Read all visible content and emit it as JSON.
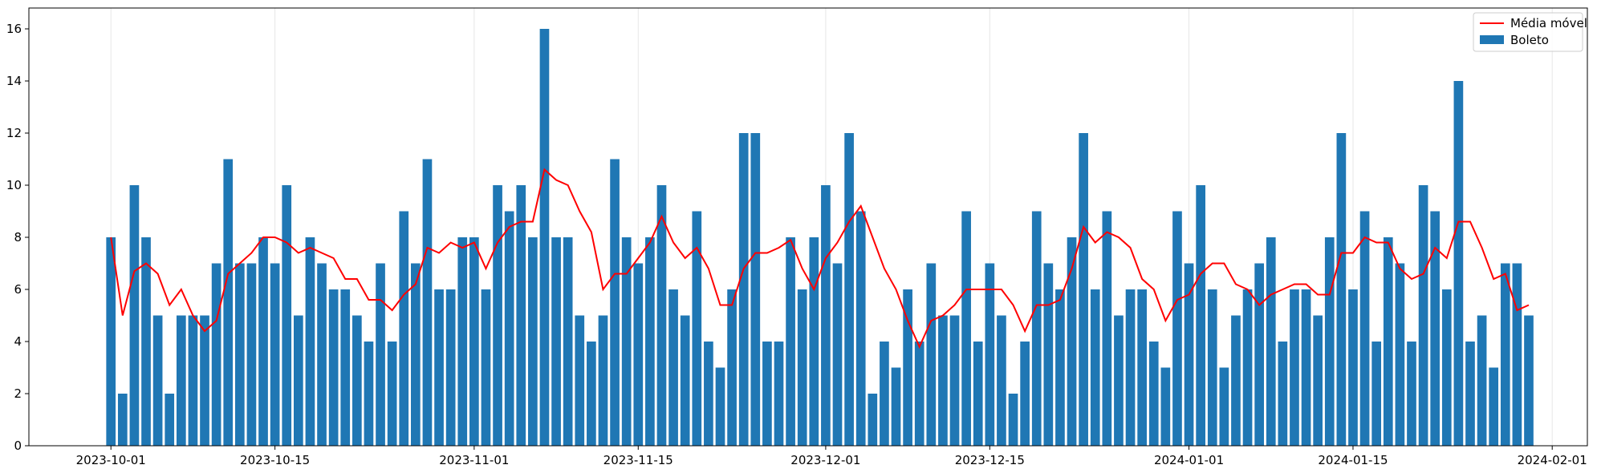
{
  "chart_data": {
    "type": "bar",
    "title": "",
    "xlabel": "",
    "ylabel": "",
    "x_start_date": "2023-10-01",
    "xlim": [
      "2023-09-24",
      "2024-02-04"
    ],
    "ylim": [
      0,
      16.8
    ],
    "grid": "vertical",
    "legend_position": "top-right",
    "x_ticks": [
      {
        "date": "2023-10-01",
        "label": "2023-10-01"
      },
      {
        "date": "2023-10-15",
        "label": "2023-10-15"
      },
      {
        "date": "2023-11-01",
        "label": "2023-11-01"
      },
      {
        "date": "2023-11-15",
        "label": "2023-11-15"
      },
      {
        "date": "2023-12-01",
        "label": "2023-12-01"
      },
      {
        "date": "2023-12-15",
        "label": "2023-12-15"
      },
      {
        "date": "2024-01-01",
        "label": "2024-01-01"
      },
      {
        "date": "2024-01-15",
        "label": "2024-01-15"
      },
      {
        "date": "2024-02-01",
        "label": "2024-02-01"
      }
    ],
    "y_ticks": [
      0,
      2,
      4,
      6,
      8,
      10,
      12,
      14,
      16
    ],
    "series": [
      {
        "name": "Boleto",
        "kind": "bar",
        "color": "#1f77b4",
        "values": [
          8,
          2,
          10,
          8,
          5,
          2,
          5,
          5,
          5,
          7,
          11,
          7,
          7,
          8,
          7,
          10,
          5,
          8,
          7,
          6,
          6,
          5,
          4,
          7,
          4,
          9,
          7,
          11,
          6,
          6,
          8,
          8,
          6,
          10,
          9,
          10,
          8,
          16,
          8,
          8,
          5,
          4,
          5,
          11,
          8,
          7,
          8,
          10,
          6,
          5,
          9,
          4,
          3,
          6,
          12,
          12,
          4,
          4,
          8,
          6,
          8,
          10,
          7,
          12,
          9,
          2,
          4,
          3,
          6,
          4,
          7,
          5,
          5,
          9,
          4,
          7,
          5,
          2,
          4,
          9,
          7,
          6,
          8,
          12,
          6,
          9,
          5,
          6,
          6,
          4,
          3,
          9,
          7,
          10,
          6,
          3,
          5,
          6,
          7,
          8,
          4,
          6,
          6,
          5,
          8,
          12,
          6,
          9,
          4,
          8,
          7,
          4,
          10,
          9,
          6,
          14,
          4,
          5,
          3,
          7,
          7,
          5
        ]
      },
      {
        "name": "Média móvel",
        "kind": "line",
        "color": "#ff0000",
        "values": [
          8,
          5,
          6.7,
          7,
          6.6,
          5.4,
          6,
          5,
          4.4,
          4.8,
          6.6,
          7,
          7.4,
          8,
          8,
          7.8,
          7.4,
          7.6,
          7.4,
          7.2,
          6.4,
          6.4,
          5.6,
          5.6,
          5.2,
          5.8,
          6.2,
          7.6,
          7.4,
          7.8,
          7.6,
          7.8,
          6.8,
          7.8,
          8.4,
          8.6,
          8.6,
          10.6,
          10.2,
          10,
          9,
          8.2,
          6,
          6.6,
          6.6,
          7.2,
          7.8,
          8.8,
          7.8,
          7.2,
          7.6,
          6.8,
          5.4,
          5.4,
          6.8,
          7.4,
          7.4,
          7.6,
          7.9,
          6.8,
          6,
          7.2,
          7.8,
          8.6,
          9.2,
          8,
          6.8,
          6,
          4.8,
          3.8,
          4.8,
          5,
          5.4,
          6,
          6,
          6,
          6,
          5.4,
          4.4,
          5.4,
          5.4,
          5.6,
          6.8,
          8.4,
          7.8,
          8.2,
          8,
          7.6,
          6.4,
          6,
          4.8,
          5.6,
          5.8,
          6.6,
          7,
          7,
          6.2,
          6,
          5.4,
          5.8,
          6,
          6.2,
          6.2,
          5.8,
          5.8,
          7.4,
          7.4,
          8,
          7.8,
          7.8,
          6.8,
          6.4,
          6.6,
          7.6,
          7.2,
          8.6,
          8.6,
          7.6,
          6.4,
          6.6,
          5.2,
          5.4
        ]
      }
    ]
  }
}
